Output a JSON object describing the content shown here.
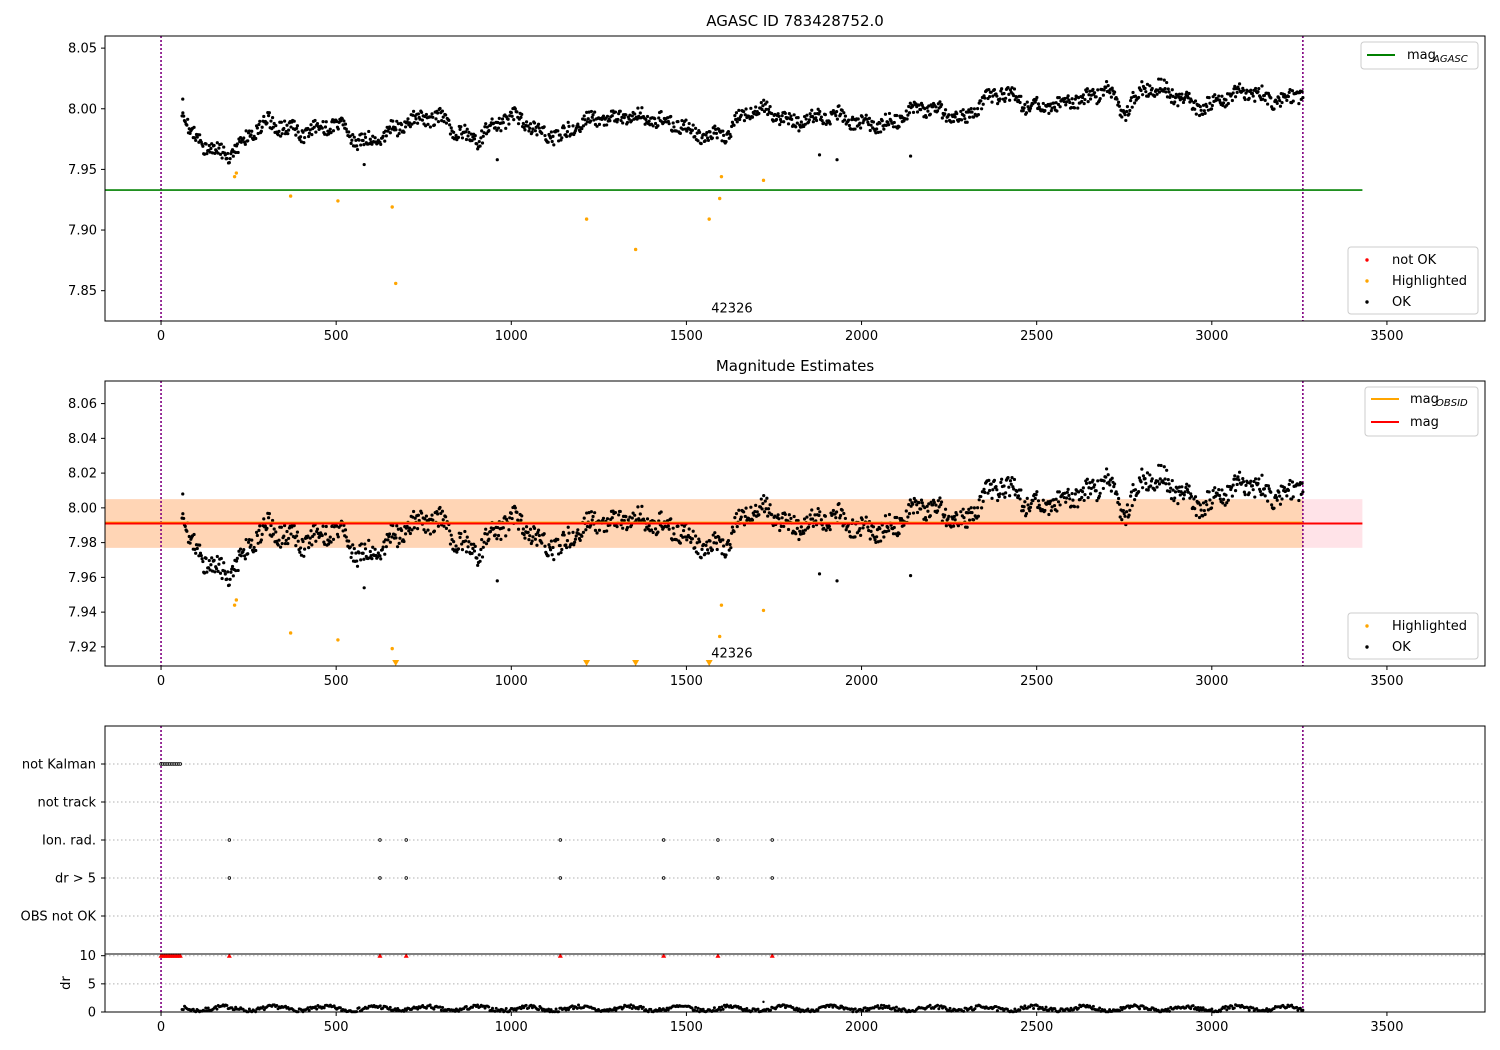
{
  "chart_data": [
    {
      "type": "scatter",
      "title": "AGASC ID 783428752.0",
      "xlim": [
        -160,
        3780
      ],
      "ylim": [
        7.825,
        8.06
      ],
      "xticks": [
        0,
        500,
        1000,
        1500,
        2000,
        2500,
        3000,
        3500
      ],
      "yticks": [
        7.85,
        7.9,
        7.95,
        8.0,
        8.05
      ],
      "xtick_labels": [
        "0",
        "500",
        "1000",
        "1500",
        "2000",
        "2500",
        "3000",
        "3500"
      ],
      "ytick_labels": [
        "7.85",
        "7.90",
        "7.95",
        "8.00",
        "8.05"
      ],
      "vlines": [
        0,
        3260
      ],
      "hline": {
        "name": "mag_AGASC",
        "y": 7.933,
        "x_end": 3430,
        "color": "#008000"
      },
      "annotation": {
        "text": "42326",
        "x": 1630,
        "y": 7.832
      },
      "series": [
        {
          "name": "not OK",
          "color": "#ff0000",
          "points": []
        },
        {
          "name": "Highlighted",
          "color": "#ffa500",
          "points": [
            [
              210,
              7.944
            ],
            [
              215,
              7.947
            ],
            [
              370,
              7.928
            ],
            [
              505,
              7.924
            ],
            [
              660,
              7.919
            ],
            [
              670,
              7.856
            ],
            [
              1215,
              7.909
            ],
            [
              1355,
              7.884
            ],
            [
              1565,
              7.909
            ],
            [
              1595,
              7.926
            ],
            [
              1600,
              7.944
            ],
            [
              1720,
              7.941
            ]
          ]
        },
        {
          "name": "OK",
          "color": "#000000",
          "trend": [
            [
              60,
              7.99
            ],
            [
              90,
              7.975
            ],
            [
              200,
              7.965
            ],
            [
              300,
              7.985
            ],
            [
              500,
              7.985
            ],
            [
              560,
              7.97
            ],
            [
              650,
              7.985
            ],
            [
              800,
              7.99
            ],
            [
              900,
              7.978
            ],
            [
              1000,
              7.99
            ],
            [
              1150,
              7.98
            ],
            [
              1350,
              7.998
            ],
            [
              1450,
              7.985
            ],
            [
              1600,
              7.98
            ],
            [
              1700,
              7.997
            ],
            [
              1900,
              7.99
            ],
            [
              2100,
              7.99
            ],
            [
              2200,
              8.0
            ],
            [
              2300,
              7.995
            ],
            [
              2400,
              8.01
            ],
            [
              2550,
              8.003
            ],
            [
              2650,
              8.005
            ],
            [
              2700,
              8.02
            ],
            [
              2750,
              8.0
            ],
            [
              2800,
              8.015
            ],
            [
              3000,
              8.005
            ],
            [
              3100,
              8.01
            ],
            [
              3260,
              8.012
            ]
          ],
          "scatter": 0.006,
          "count": 1400,
          "outliers": [
            [
              62,
              8.008
            ],
            [
              1880,
              7.962
            ],
            [
              1930,
              7.958
            ],
            [
              2140,
              7.961
            ],
            [
              580,
              7.954
            ],
            [
              960,
              7.958
            ]
          ]
        }
      ],
      "legends": [
        {
          "entries": [
            {
              "label": "mag",
              "sub": "AGASC",
              "kind": "line",
              "color": "#008000"
            }
          ],
          "placement": "top-right"
        },
        {
          "entries": [
            {
              "label": "not OK",
              "kind": "dot",
              "color": "#ff0000"
            },
            {
              "label": "Highlighted",
              "kind": "dot",
              "color": "#ffa500"
            },
            {
              "label": "OK",
              "kind": "dot",
              "color": "#000000"
            }
          ],
          "placement": "lower-right"
        }
      ]
    },
    {
      "type": "scatter",
      "title": "Magnitude Estimates",
      "xlim": [
        -160,
        3780
      ],
      "ylim": [
        7.909,
        8.073
      ],
      "xticks": [
        0,
        500,
        1000,
        1500,
        2000,
        2500,
        3000,
        3500
      ],
      "yticks": [
        7.92,
        7.94,
        7.96,
        7.98,
        8.0,
        8.02,
        8.04,
        8.06
      ],
      "xtick_labels": [
        "0",
        "500",
        "1000",
        "1500",
        "2000",
        "2500",
        "3000",
        "3500"
      ],
      "ytick_labels": [
        "7.92",
        "7.94",
        "7.96",
        "7.98",
        "8.00",
        "8.02",
        "8.04",
        "8.06"
      ],
      "vlines": [
        0,
        3260
      ],
      "bands": [
        {
          "name": "mag band",
          "x": [
            -160,
            3430
          ],
          "y": [
            7.977,
            8.005
          ],
          "color": "#ffc0cb",
          "opacity": 0.45
        },
        {
          "name": "mag_OBSID band",
          "x": [
            -160,
            3260
          ],
          "y": [
            7.977,
            8.005
          ],
          "color": "#ffa500",
          "opacity": 0.22
        }
      ],
      "hlines": [
        {
          "name": "mag_OBSID",
          "y": 7.9915,
          "x_end": 3260,
          "color": "#ffa500"
        },
        {
          "name": "mag",
          "y": 7.991,
          "x_end": 3430,
          "color": "#ff0000"
        }
      ],
      "annotation": {
        "text": "42326",
        "x": 1630,
        "y": 7.914
      },
      "series": [
        {
          "name": "Highlighted",
          "color": "#ffa500",
          "points": [
            [
              210,
              7.944
            ],
            [
              215,
              7.947
            ],
            [
              370,
              7.928
            ],
            [
              505,
              7.924
            ],
            [
              660,
              7.919
            ],
            [
              1595,
              7.926
            ],
            [
              1600,
              7.944
            ],
            [
              1720,
              7.941
            ]
          ],
          "below_range": [
            670,
            1215,
            1355,
            1565
          ]
        },
        {
          "name": "OK",
          "color": "#000000"
        }
      ],
      "legends": [
        {
          "entries": [
            {
              "label": "mag",
              "sub": "OBSID",
              "kind": "line",
              "color": "#ffa500"
            },
            {
              "label": "mag",
              "kind": "line",
              "color": "#ff0000"
            }
          ],
          "placement": "top-right"
        },
        {
          "entries": [
            {
              "label": "Highlighted",
              "kind": "dot",
              "color": "#ffa500"
            },
            {
              "label": "OK",
              "kind": "dot",
              "color": "#000000"
            }
          ],
          "placement": "lower-right"
        }
      ]
    },
    {
      "type": "scatter",
      "title": "",
      "xlim": [
        -160,
        3780
      ],
      "xticks": [
        0,
        500,
        1000,
        1500,
        2000,
        2500,
        3000,
        3500
      ],
      "xtick_labels": [
        "0",
        "500",
        "1000",
        "1500",
        "2000",
        "2500",
        "3000",
        "3500"
      ],
      "vlines": [
        0,
        3260
      ],
      "categories": [
        "not Kalman",
        "not track",
        "Ion. rad.",
        "dr > 5",
        "OBS not OK"
      ],
      "flag_points": {
        "not Kalman": [
          0,
          5,
          10,
          15,
          20,
          25,
          30,
          35,
          40,
          45,
          50,
          55
        ],
        "not track": [],
        "Ion. rad.": [
          195,
          625,
          700,
          1140,
          1435,
          1590,
          1745
        ],
        "dr > 5": [
          195,
          625,
          700,
          1140,
          1435,
          1590,
          1745
        ],
        "OBS not OK": []
      },
      "dr_panel": {
        "ylabel": "dr",
        "ylim": [
          0,
          10.3
        ],
        "yticks": [
          0,
          5,
          10
        ],
        "ytick_labels": [
          "0",
          "5",
          "10"
        ],
        "capped_points": [
          0,
          5,
          10,
          15,
          20,
          25,
          30,
          35,
          40,
          45,
          50,
          55,
          195,
          625,
          700,
          1140,
          1435,
          1590,
          1745
        ],
        "cap_value": 10,
        "baseline": 0.6,
        "baseline_range": [
          60,
          3260
        ],
        "outliers": [
          [
            1720,
            1.8
          ],
          [
            1940,
            1.1
          ]
        ]
      }
    }
  ]
}
